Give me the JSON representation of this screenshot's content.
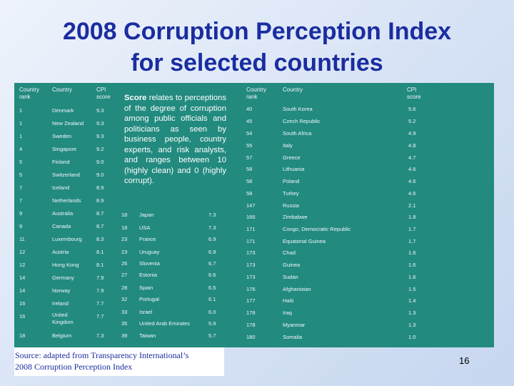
{
  "title_line1": "2008 Corruption Perception Index",
  "title_line2": "for selected countries",
  "headers": {
    "rank": "Country rank",
    "country": "Country",
    "score": "CPI score"
  },
  "info": {
    "lead": "Score",
    "text": " relates to perceptions of the degree of corruption among public officials and politicians as seen by business people, country experts, and risk analysts, and ranges between 10 (highly clean) and 0 (highly corrupt)."
  },
  "left_rows": [
    {
      "rank": "1",
      "country": "Denmark",
      "score": "9.3"
    },
    {
      "rank": "1",
      "country": "New Zealand",
      "score": "9.3"
    },
    {
      "rank": "1",
      "country": "Sweden",
      "score": "9.3"
    },
    {
      "rank": "4",
      "country": "Singapore",
      "score": "9.2"
    },
    {
      "rank": "5",
      "country": "Finland",
      "score": "9.0"
    },
    {
      "rank": "5",
      "country": "Switzerland",
      "score": "9.0"
    },
    {
      "rank": "7",
      "country": "Iceland",
      "score": "8.9"
    },
    {
      "rank": "7",
      "country": "Netherlands",
      "score": "8.9"
    },
    {
      "rank": "9",
      "country": "Australia",
      "score": "8.7"
    },
    {
      "rank": "9",
      "country": "Canada",
      "score": "8.7"
    },
    {
      "rank": "11",
      "country": "Luxembourg",
      "score": "8.3"
    },
    {
      "rank": "12",
      "country": "Austria",
      "score": "8.1"
    },
    {
      "rank": "12",
      "country": "Hong Kong",
      "score": "8.1"
    },
    {
      "rank": "14",
      "country": "Germany",
      "score": "7.9"
    },
    {
      "rank": "14",
      "country": "Norway",
      "score": "7.9"
    },
    {
      "rank": "16",
      "country": "Ireland",
      "score": "7.7"
    },
    {
      "rank": "16",
      "country": "United Kingdom",
      "score": "7.7"
    },
    {
      "rank": "18",
      "country": "Belgium",
      "score": "7.3"
    }
  ],
  "middle_rows": [
    {
      "rank": "18",
      "country": "Japan",
      "score": "7.3"
    },
    {
      "rank": "18",
      "country": "USA",
      "score": "7.3"
    },
    {
      "rank": "23",
      "country": "France",
      "score": "6.9"
    },
    {
      "rank": "23",
      "country": "Uruguay",
      "score": "6.9"
    },
    {
      "rank": "26",
      "country": "Slovenia",
      "score": "6.7"
    },
    {
      "rank": "27",
      "country": "Estonia",
      "score": "6.6"
    },
    {
      "rank": "28",
      "country": "Spain",
      "score": "6.5"
    },
    {
      "rank": "32",
      "country": "Portugal",
      "score": "6.1"
    },
    {
      "rank": "33",
      "country": "Israel",
      "score": "6.0"
    },
    {
      "rank": "35",
      "country": "United Arab Emirates",
      "score": "5.9"
    },
    {
      "rank": "39",
      "country": "Taiwan",
      "score": "5.7"
    }
  ],
  "right_rows": [
    {
      "rank": "40",
      "country": "South Korea",
      "score": "5.6"
    },
    {
      "rank": "45",
      "country": "Czech Republic",
      "score": "5.2"
    },
    {
      "rank": "54",
      "country": "South Africa",
      "score": "4.9"
    },
    {
      "rank": "55",
      "country": "Italy",
      "score": "4.8"
    },
    {
      "rank": "57",
      "country": "Greece",
      "score": "4.7"
    },
    {
      "rank": "58",
      "country": "Lithuania",
      "score": "4.6"
    },
    {
      "rank": "58",
      "country": "Poland",
      "score": "4.6"
    },
    {
      "rank": "58",
      "country": "Turkey",
      "score": "4.6"
    },
    {
      "rank": "147",
      "country": "Russia",
      "score": "2.1"
    },
    {
      "rank": "166",
      "country": "Zimbabwe",
      "score": "1.8"
    },
    {
      "rank": "171",
      "country": "Congo, Democratic Republic",
      "score": "1.7"
    },
    {
      "rank": "171",
      "country": "Equatorial Guinea",
      "score": "1.7"
    },
    {
      "rank": "173",
      "country": "Chad",
      "score": "1.6"
    },
    {
      "rank": "173",
      "country": "Guinea",
      "score": "1.6"
    },
    {
      "rank": "173",
      "country": "Sudan",
      "score": "1.6"
    },
    {
      "rank": "176",
      "country": "Afghanistan",
      "score": "1.5"
    },
    {
      "rank": "177",
      "country": "Haiti",
      "score": "1.4"
    },
    {
      "rank": "178",
      "country": "Iraq",
      "score": "1.3"
    },
    {
      "rank": "178",
      "country": "Myanmar",
      "score": "1.3"
    },
    {
      "rank": "180",
      "country": "Somalia",
      "score": "1.0"
    }
  ],
  "source_line1": "Source: adapted from Transparency International’s",
  "source_line2": "2008 Corruption Perception Index",
  "page_number": "16"
}
